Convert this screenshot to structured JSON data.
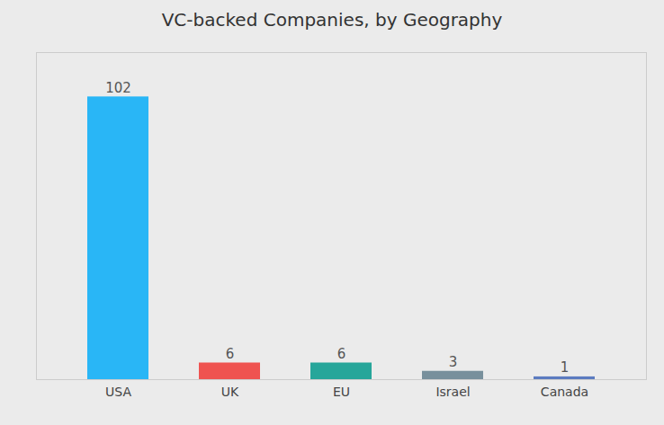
{
  "chart_data": {
    "type": "bar",
    "title": "VC-backed Companies, by Geography",
    "categories": [
      "USA",
      "UK",
      "EU",
      "Israel",
      "Canada"
    ],
    "values": [
      102,
      6,
      6,
      3,
      1
    ],
    "colors": [
      "#29B6F6",
      "#EF5350",
      "#26A69A",
      "#78909C",
      "#5C7BC0"
    ],
    "ylim": [
      0,
      118
    ],
    "grid": false,
    "data_labels": true,
    "tick_labels": "x"
  }
}
